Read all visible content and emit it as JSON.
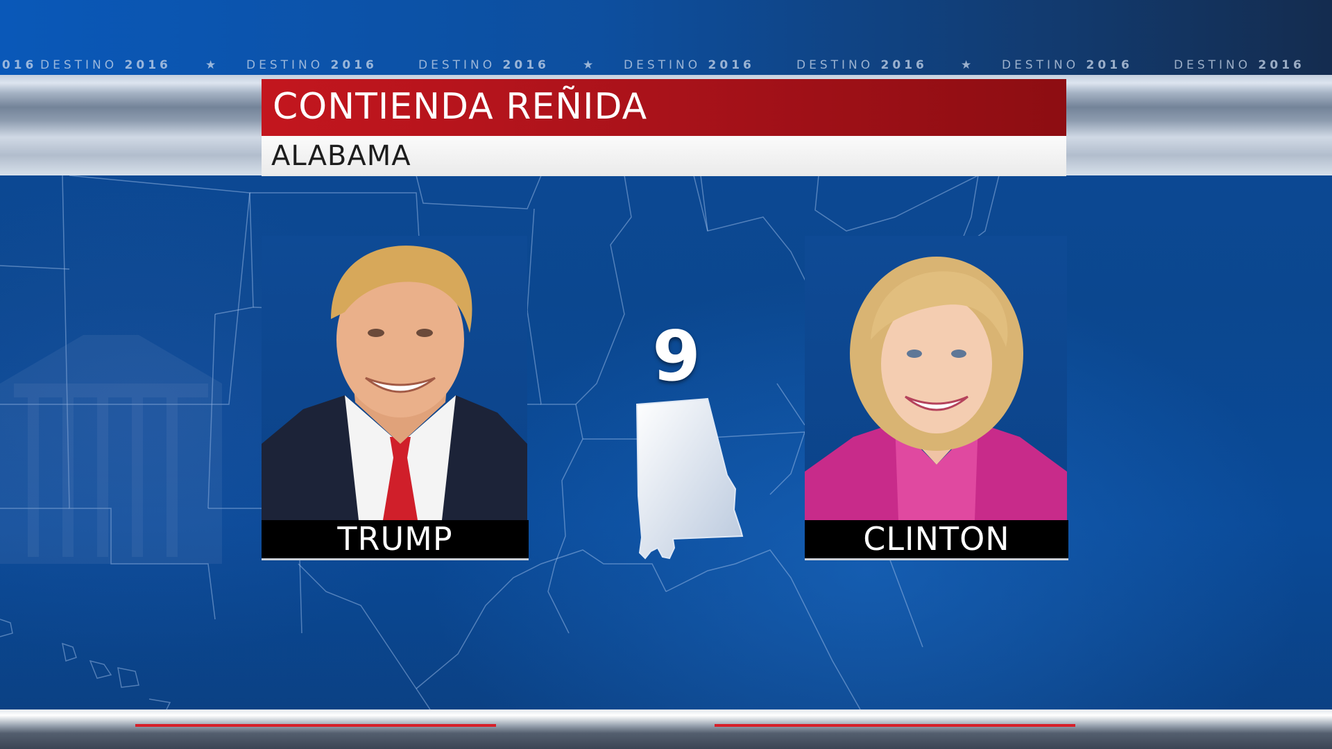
{
  "ticker": {
    "items": [
      {
        "word": "DESTINO",
        "year": "2016"
      },
      {
        "word": "DESTINO",
        "year": "2016"
      },
      {
        "word": "DESTINO",
        "year": "2016"
      },
      {
        "word": "DESTINO",
        "year": "2016"
      },
      {
        "word": "DESTINO",
        "year": "2016"
      },
      {
        "word": "DESTINO",
        "year": "2016"
      },
      {
        "word": "DESTINO",
        "year": "2016"
      }
    ],
    "star": "★"
  },
  "headline": {
    "title": "CONTIENDA REÑIDA",
    "state": "ALABAMA"
  },
  "race": {
    "electoral_votes": "9",
    "left_candidate": {
      "name": "TRUMP"
    },
    "right_candidate": {
      "name": "CLINTON"
    }
  },
  "colors": {
    "headline_red": "#c3161e",
    "background_blue": "#0b478f",
    "nameplate_black": "#000000"
  }
}
